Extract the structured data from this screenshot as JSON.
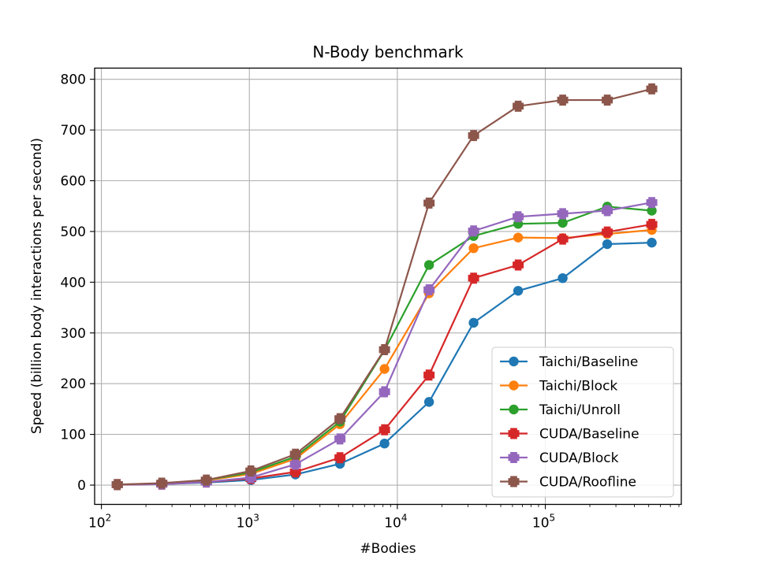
{
  "chart_data": {
    "type": "line",
    "title": "N-Body benchmark",
    "xlabel": "#Bodies",
    "ylabel": "Speed (billion body interactions per second)",
    "xscale": "log",
    "xlim": [
      90,
      830000
    ],
    "ylim": [
      -38,
      822
    ],
    "grid": true,
    "legend_position": "lower-right",
    "x_ticks": [
      {
        "value": 100,
        "base": "10",
        "exp": "2"
      },
      {
        "value": 1000,
        "base": "10",
        "exp": "3"
      },
      {
        "value": 10000,
        "base": "10",
        "exp": "4"
      },
      {
        "value": 100000,
        "base": "10",
        "exp": "5"
      }
    ],
    "y_ticks": [
      {
        "value": 0,
        "label": "0"
      },
      {
        "value": 100,
        "label": "100"
      },
      {
        "value": 200,
        "label": "200"
      },
      {
        "value": 300,
        "label": "300"
      },
      {
        "value": 400,
        "label": "400"
      },
      {
        "value": 500,
        "label": "500"
      },
      {
        "value": 600,
        "label": "600"
      },
      {
        "value": 700,
        "label": "700"
      },
      {
        "value": 800,
        "label": "800"
      }
    ],
    "x": [
      128,
      256,
      512,
      1024,
      2048,
      4096,
      8192,
      16384,
      32768,
      65536,
      131072,
      262144,
      524288
    ],
    "series": [
      {
        "name": "Taichi/Baseline",
        "color": "#1f77b4",
        "marker": "circle",
        "values": [
          1,
          2,
          5,
          10,
          21,
          42,
          82,
          164,
          320,
          383,
          408,
          475,
          478
        ]
      },
      {
        "name": "Taichi/Block",
        "color": "#ff7f0e",
        "marker": "circle",
        "values": [
          1,
          3,
          9,
          22,
          52,
          120,
          229,
          378,
          467,
          488,
          487,
          495,
          503
        ]
      },
      {
        "name": "Taichi/Unroll",
        "color": "#2ca02c",
        "marker": "circle",
        "values": [
          1,
          3,
          10,
          25,
          56,
          125,
          266,
          434,
          491,
          515,
          517,
          549,
          541
        ]
      },
      {
        "name": "CUDA/Baseline",
        "color": "#d62728",
        "marker": "plus",
        "values": [
          1,
          2,
          6,
          13,
          26,
          54,
          109,
          217,
          408,
          434,
          485,
          499,
          514
        ]
      },
      {
        "name": "CUDA/Block",
        "color": "#9467bd",
        "marker": "plus",
        "values": [
          1,
          2,
          6,
          15,
          41,
          91,
          184,
          385,
          501,
          529,
          535,
          541,
          557
        ]
      },
      {
        "name": "CUDA/Roofline",
        "color": "#8c564b",
        "marker": "plus",
        "values": [
          1,
          4,
          10,
          28,
          61,
          131,
          267,
          556,
          689,
          747,
          759,
          759,
          781
        ]
      }
    ]
  }
}
